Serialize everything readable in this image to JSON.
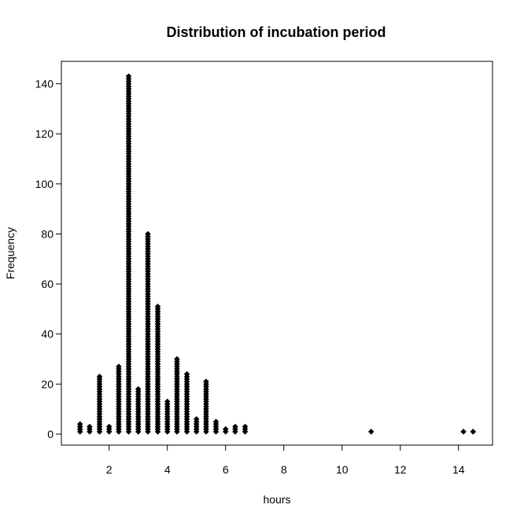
{
  "chart_data": {
    "type": "scatter",
    "title": "Distribution of incubation period",
    "xlabel": "hours",
    "ylabel": "Frequency",
    "xlim": [
      0.9,
      14.6
    ],
    "ylim": [
      0,
      143
    ],
    "xticks": [
      2,
      4,
      6,
      8,
      10,
      12,
      14
    ],
    "yticks": [
      0,
      20,
      40,
      60,
      80,
      100,
      120,
      140
    ],
    "xtick_labels": [
      "2",
      "4",
      "6",
      "8",
      "10",
      "12",
      "14"
    ],
    "ytick_labels": [
      "0",
      "20",
      "40",
      "60",
      "80",
      "100",
      "120",
      "140"
    ],
    "grid": false,
    "marker_color": "#000000",
    "series": [
      {
        "name": "Frequency",
        "x": [
          1.0,
          1.33,
          1.67,
          2.0,
          2.33,
          2.67,
          3.0,
          3.33,
          3.67,
          4.0,
          4.33,
          4.67,
          5.0,
          5.33,
          5.67,
          6.0,
          6.33,
          6.67,
          11.0,
          14.17,
          14.5
        ],
        "y": [
          4,
          3,
          23,
          3,
          27,
          143,
          18,
          80,
          51,
          13,
          30,
          24,
          6,
          21,
          5,
          2,
          3,
          3,
          1,
          1,
          1
        ]
      }
    ]
  }
}
